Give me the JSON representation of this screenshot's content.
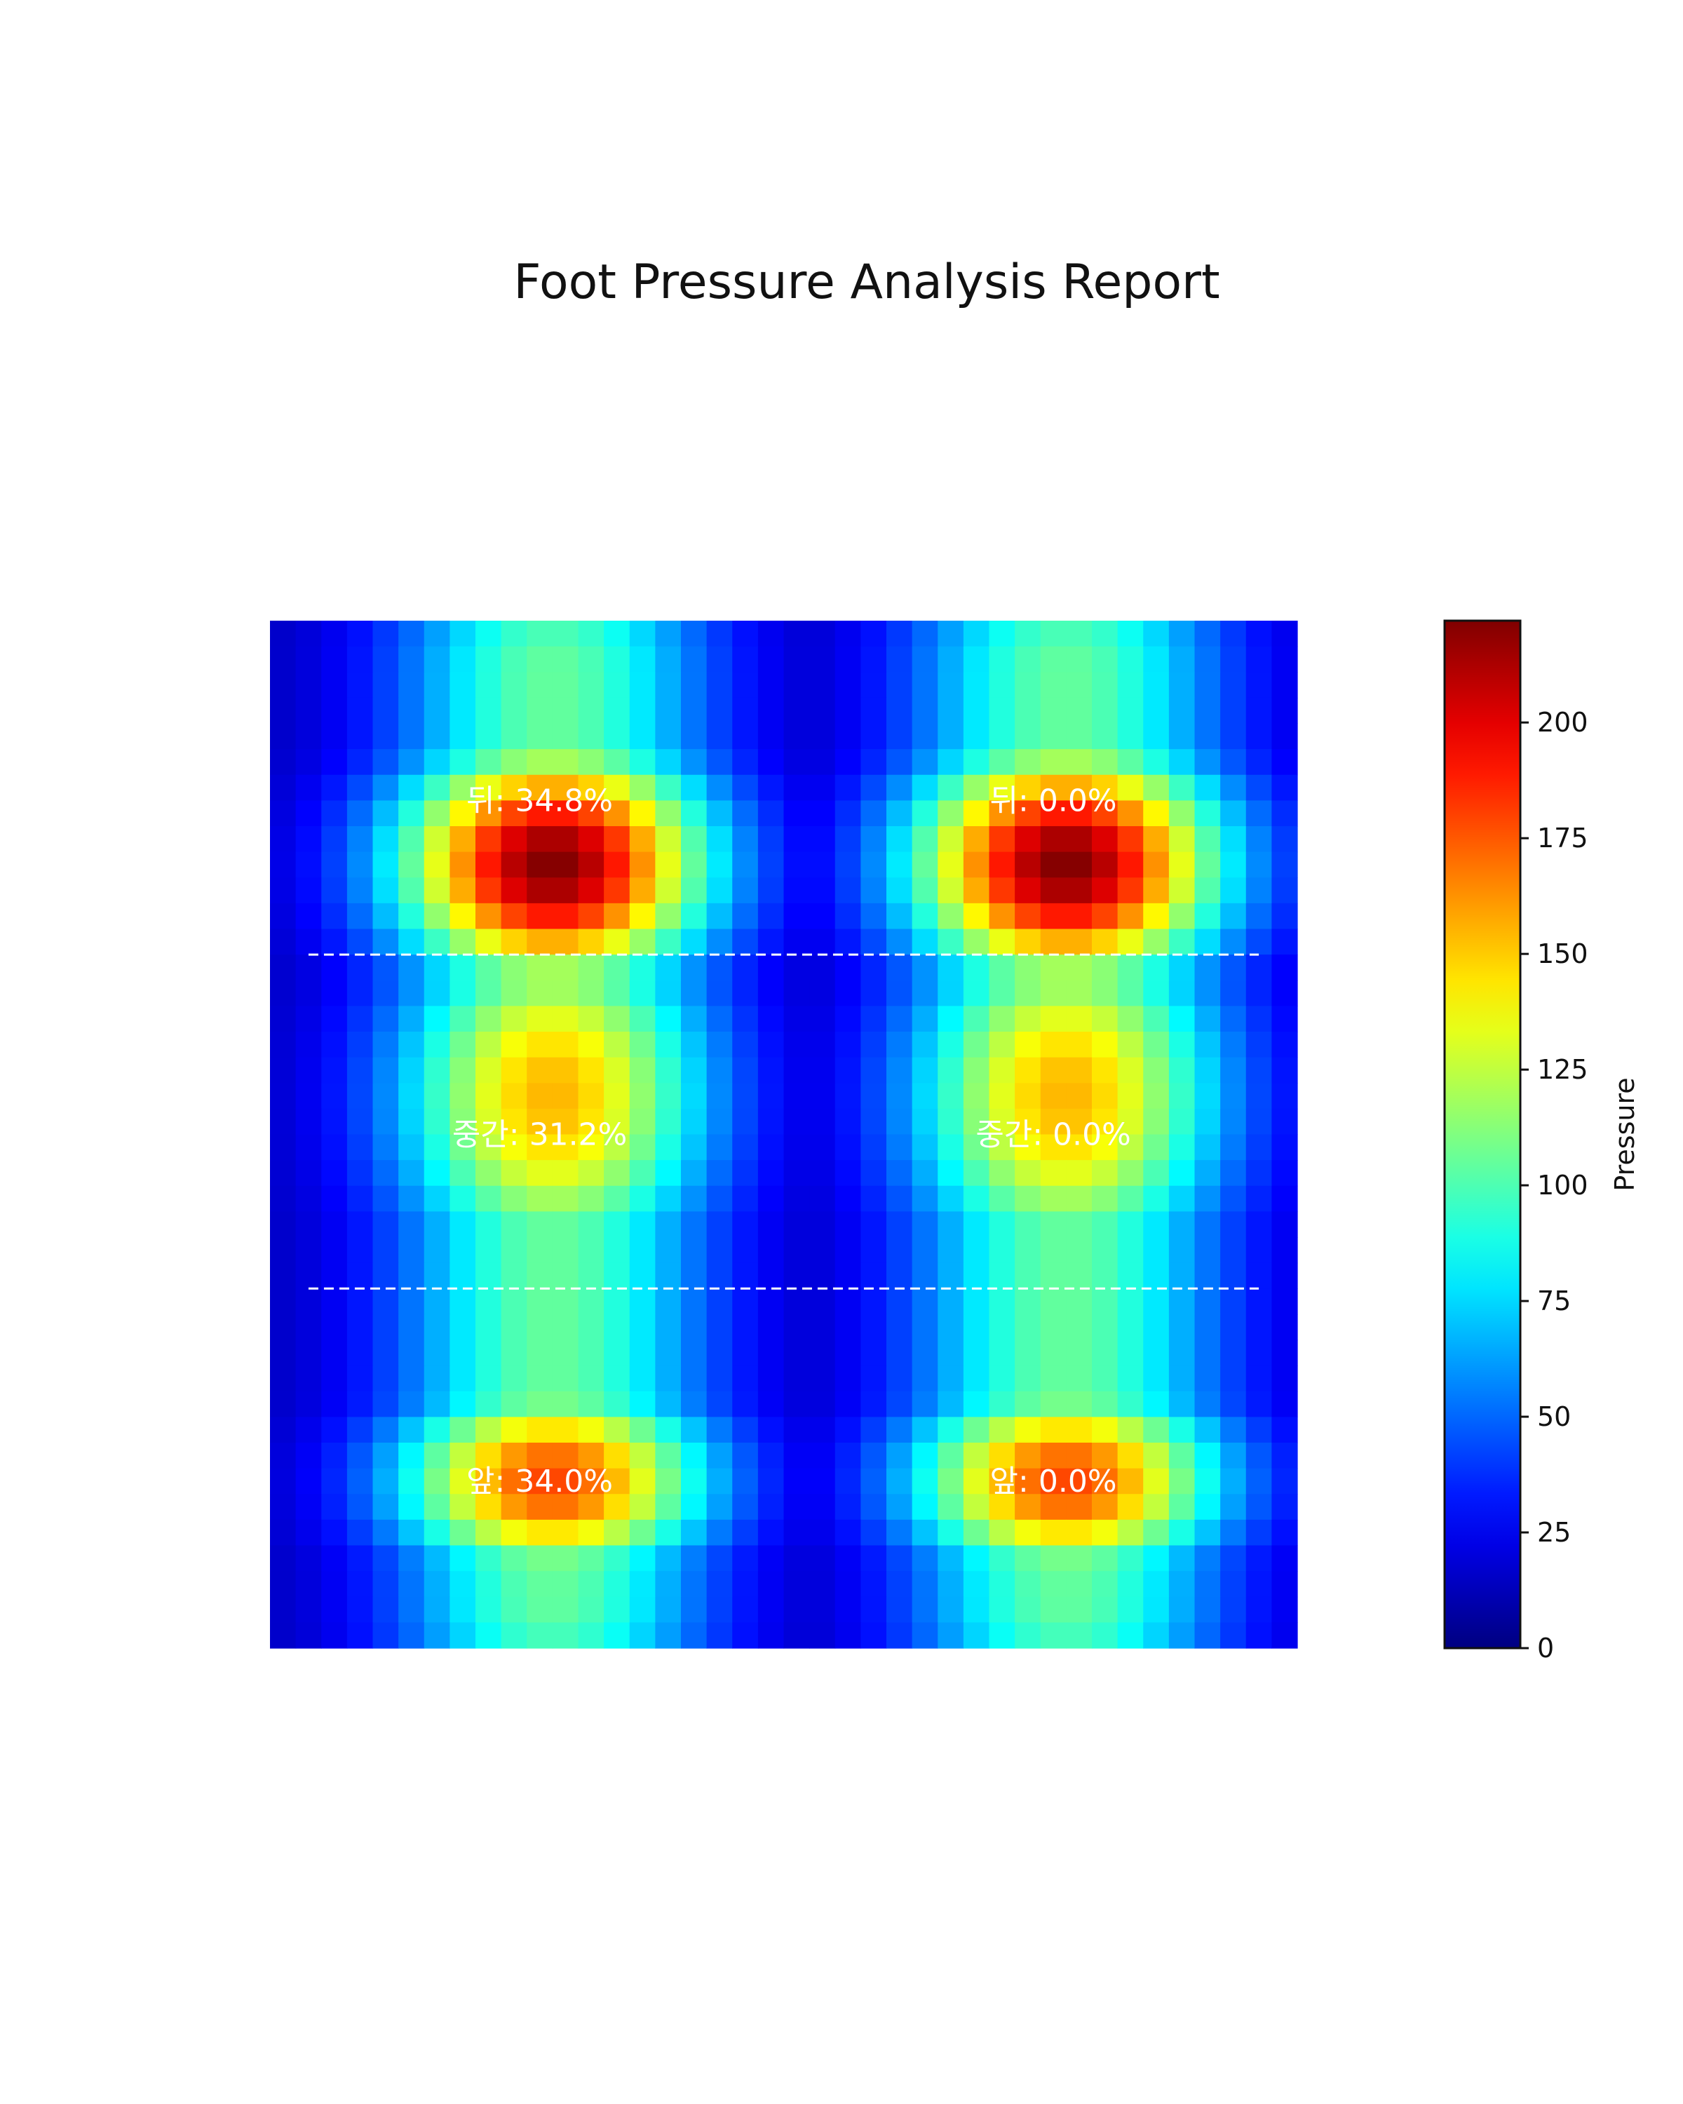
{
  "chart_data": {
    "type": "heatmap",
    "title": "Foot Pressure Analysis Report",
    "colormap": "jet",
    "grid": false,
    "colorbar": {
      "label": "Pressure",
      "range": [
        0,
        222
      ],
      "ticks": [
        0,
        25,
        50,
        75,
        100,
        125,
        150,
        175,
        200
      ]
    },
    "grid_size": {
      "rows": 40,
      "cols": 40
    },
    "region_boundaries_rows": [
      13,
      26
    ],
    "feet": [
      {
        "id": "left",
        "regions": [
          {
            "name": "뒤",
            "percent": "34.8%",
            "text": "뒤: 34.8%"
          },
          {
            "name": "중간",
            "percent": "31.2%",
            "text": "중간: 31.2%"
          },
          {
            "name": "앞",
            "percent": "34.0%",
            "text": "앞: 34.0%"
          }
        ]
      },
      {
        "id": "right",
        "regions": [
          {
            "name": "뒤",
            "percent": "0.0%",
            "text": "뒤: 0.0%"
          },
          {
            "name": "중간",
            "percent": "0.0%",
            "text": "중간: 0.0%"
          },
          {
            "name": "앞",
            "percent": "0.0%",
            "text": "앞: 0.0%"
          }
        ]
      }
    ],
    "pressure_model": {
      "foot_center_cols": [
        10.5,
        30.5
      ],
      "peaks": [
        {
          "row": 9,
          "col_offset": 0,
          "value": 222
        },
        {
          "row": 33,
          "col_offset": 0,
          "value": 180
        },
        {
          "row": 18,
          "col_offset": 0,
          "value": 155
        }
      ],
      "column_profile_std": 4.3,
      "baseline_min": 12,
      "edge_value": 70
    }
  }
}
